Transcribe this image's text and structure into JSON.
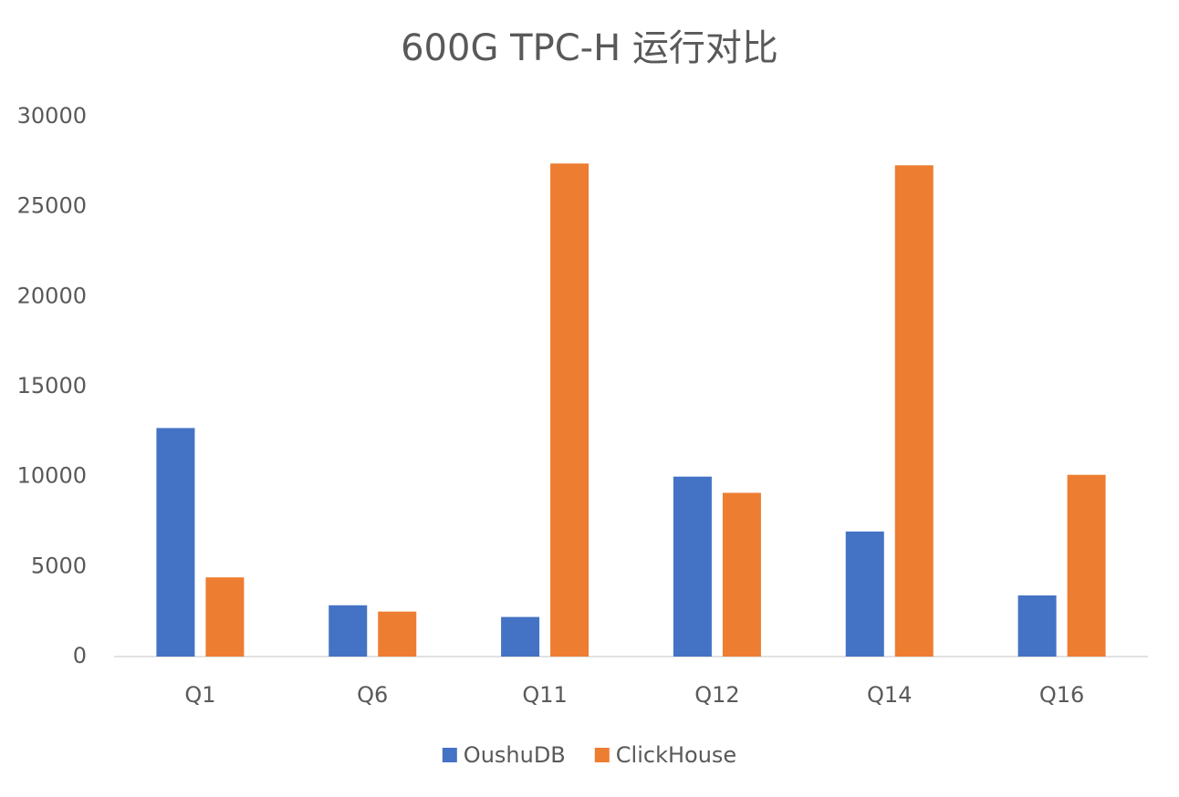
{
  "chart_data": {
    "type": "bar",
    "title": "600G TPC-H 运行对比",
    "categories": [
      "Q1",
      "Q6",
      "Q11",
      "Q12",
      "Q14",
      "Q16"
    ],
    "series": [
      {
        "name": "OushuDB",
        "color": "#4472c4",
        "values": [
          12700,
          2850,
          2200,
          10000,
          6950,
          3400
        ]
      },
      {
        "name": "ClickHouse",
        "color": "#ed7d31",
        "values": [
          4400,
          2500,
          27400,
          9100,
          27300,
          10100
        ]
      }
    ],
    "ylim": [
      0,
      30000
    ],
    "yticks": [
      0,
      5000,
      10000,
      15000,
      20000,
      25000,
      30000
    ],
    "grid": false,
    "legend": "bottom"
  }
}
